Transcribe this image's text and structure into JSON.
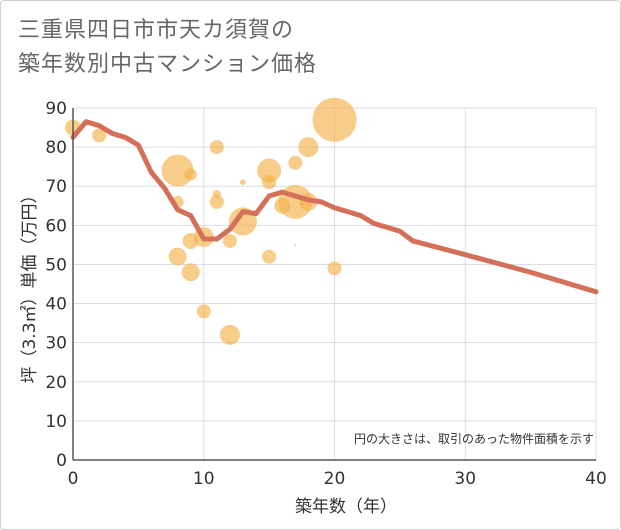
{
  "chart_data": {
    "type": "scatter",
    "title_lines": [
      "三重県四日市市天カ須賀の",
      "築年数別中古マンション価格"
    ],
    "xlabel": "築年数（年）",
    "ylabel": "坪（3.3㎡）単価（万円）",
    "xlim": [
      0,
      40
    ],
    "ylim": [
      0,
      90
    ],
    "xticks": [
      0,
      10,
      20,
      30,
      40
    ],
    "yticks": [
      0,
      10,
      20,
      30,
      40,
      50,
      60,
      70,
      80,
      90
    ],
    "grid": true,
    "note": "円の大きさは、取引のあった物件面積を示す",
    "colors": {
      "bubble": "#f5b04a",
      "line": "#d4705a",
      "grid": "#d8dde6",
      "axis": "#555555"
    },
    "bubbles": [
      {
        "x": 0,
        "y": 85,
        "r": 8
      },
      {
        "x": 2,
        "y": 83,
        "r": 7
      },
      {
        "x": 8,
        "y": 74,
        "r": 16
      },
      {
        "x": 8,
        "y": 66,
        "r": 6
      },
      {
        "x": 8,
        "y": 52,
        "r": 9
      },
      {
        "x": 9,
        "y": 73,
        "r": 6
      },
      {
        "x": 9,
        "y": 56,
        "r": 8
      },
      {
        "x": 9,
        "y": 48,
        "r": 9
      },
      {
        "x": 10,
        "y": 57,
        "r": 10
      },
      {
        "x": 10,
        "y": 38,
        "r": 7
      },
      {
        "x": 11,
        "y": 80,
        "r": 7
      },
      {
        "x": 11,
        "y": 68,
        "r": 4
      },
      {
        "x": 11,
        "y": 66,
        "r": 7
      },
      {
        "x": 12,
        "y": 56,
        "r": 7
      },
      {
        "x": 12,
        "y": 32,
        "r": 10
      },
      {
        "x": 13,
        "y": 71,
        "r": 3
      },
      {
        "x": 13,
        "y": 61,
        "r": 14
      },
      {
        "x": 15,
        "y": 74,
        "r": 12
      },
      {
        "x": 15,
        "y": 71,
        "r": 7
      },
      {
        "x": 15,
        "y": 52,
        "r": 7
      },
      {
        "x": 16,
        "y": 65,
        "r": 8
      },
      {
        "x": 17,
        "y": 76,
        "r": 7
      },
      {
        "x": 17,
        "y": 66,
        "r": 17
      },
      {
        "x": 17,
        "y": 55,
        "r": 1
      },
      {
        "x": 18,
        "y": 80,
        "r": 10
      },
      {
        "x": 18,
        "y": 66,
        "r": 9
      },
      {
        "x": 20,
        "y": 87,
        "r": 22
      },
      {
        "x": 20,
        "y": 49,
        "r": 7
      }
    ],
    "line": {
      "x": [
        0,
        1,
        2,
        3,
        4,
        5,
        6,
        7,
        8,
        9,
        10,
        11,
        12,
        13,
        14,
        15,
        16,
        17,
        18,
        19,
        20,
        21,
        22,
        23,
        24,
        25,
        26,
        30,
        35,
        40
      ],
      "y": [
        82.5,
        86.5,
        85.5,
        83.5,
        82.5,
        80.5,
        73.5,
        69.5,
        64,
        62.5,
        56.5,
        56.5,
        59,
        63.5,
        63,
        67.5,
        68.5,
        67.5,
        66.5,
        66,
        64.5,
        63.5,
        62.5,
        60.5,
        59.5,
        58.5,
        56,
        52.5,
        48,
        43
      ]
    }
  }
}
